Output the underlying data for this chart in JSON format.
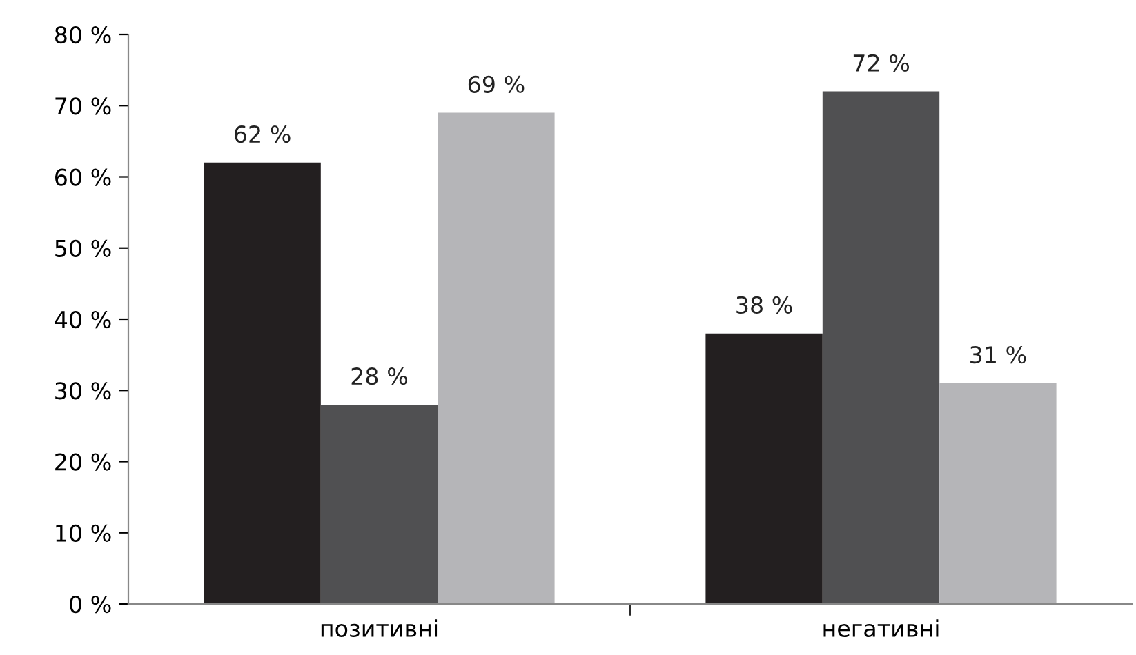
{
  "chart_data": {
    "type": "bar",
    "categories": [
      "позитивні",
      "негативні"
    ],
    "series": [
      {
        "color": "#231f20",
        "values": [
          62,
          38
        ],
        "value_labels": [
          "62 %",
          "38 %"
        ]
      },
      {
        "color": "#505052",
        "values": [
          28,
          72
        ],
        "value_labels": [
          "28 %",
          "72 %"
        ]
      },
      {
        "color": "#b5b5b8",
        "values": [
          69,
          31
        ],
        "value_labels": [
          "69 %",
          "31 %"
        ]
      }
    ],
    "ylim": [
      0,
      80
    ],
    "yticks": [
      {
        "value": 0,
        "label": "0 %"
      },
      {
        "value": 10,
        "label": "10 %"
      },
      {
        "value": 20,
        "label": "20 %"
      },
      {
        "value": 30,
        "label": "30 %"
      },
      {
        "value": 40,
        "label": "40 %"
      },
      {
        "value": 50,
        "label": "50 %"
      },
      {
        "value": 60,
        "label": "60 %"
      },
      {
        "value": 70,
        "label": "70 %"
      },
      {
        "value": 80,
        "label": "80 %"
      }
    ],
    "grid": false
  }
}
